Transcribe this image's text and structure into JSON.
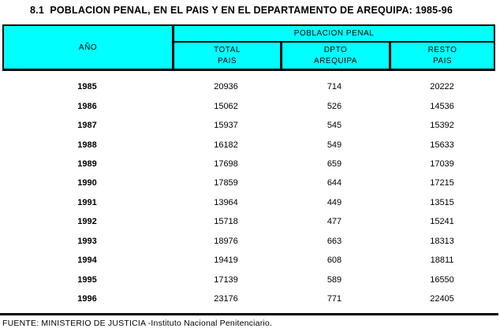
{
  "title": "8.1  POBLACION PENAL, EN EL PAIS Y EN EL DEPARTAMENTO DE AREQUIPA: 1985-96",
  "table": {
    "year_header": "AÑO",
    "group_header": "POBLACION PENAL",
    "columns": [
      {
        "line1": "TOTAL",
        "line2": "PAIS"
      },
      {
        "line1": "DPTO",
        "line2": "AREQUIPA"
      },
      {
        "line1": "RESTO",
        "line2": "PAIS"
      }
    ],
    "header_bg_color": "#00FFFF",
    "border_color": "#000000",
    "rows": [
      {
        "year": "1985",
        "total": "20936",
        "dpto": "714",
        "resto": "20222"
      },
      {
        "year": "1986",
        "total": "15062",
        "dpto": "526",
        "resto": "14536"
      },
      {
        "year": "1987",
        "total": "15937",
        "dpto": "545",
        "resto": "15392"
      },
      {
        "year": "1988",
        "total": "16182",
        "dpto": "549",
        "resto": "15633"
      },
      {
        "year": "1989",
        "total": "17698",
        "dpto": "659",
        "resto": "17039"
      },
      {
        "year": "1990",
        "total": "17859",
        "dpto": "644",
        "resto": "17215"
      },
      {
        "year": "1991",
        "total": "13964",
        "dpto": "449",
        "resto": "13515"
      },
      {
        "year": "1992",
        "total": "15718",
        "dpto": "477",
        "resto": "15241"
      },
      {
        "year": "1993",
        "total": "18976",
        "dpto": "663",
        "resto": "18313"
      },
      {
        "year": "1994",
        "total": "19419",
        "dpto": "608",
        "resto": "18811"
      },
      {
        "year": "1995",
        "total": "17139",
        "dpto": "589",
        "resto": "16550"
      },
      {
        "year": "1996",
        "total": "23176",
        "dpto": "771",
        "resto": "22405"
      }
    ]
  },
  "footer": "FUENTE: MINISTERIO DE JUSTICIA -Instituto Nacional Penitenciario."
}
